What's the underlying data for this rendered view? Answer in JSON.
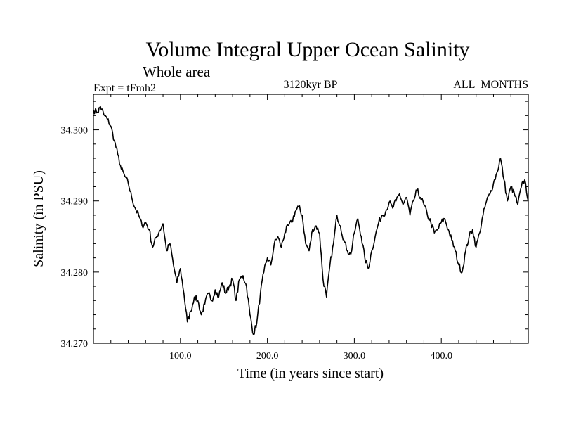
{
  "chart_data": {
    "type": "line",
    "title": "Volume Integral Upper Ocean Salinity",
    "subtitle": "Whole area",
    "left_label": "Expt = tFmh2",
    "center_label": "3120kyr BP",
    "right_label": "ALL_MONTHS",
    "xlabel": "Time (in years since start)",
    "ylabel": "Salinity (in PSU)",
    "xlim": [
      0,
      500
    ],
    "ylim": [
      34.27,
      34.305
    ],
    "xticks": [
      100,
      200,
      300,
      400
    ],
    "xtick_labels": [
      "100.0",
      "200.0",
      "300.0",
      "400.0"
    ],
    "yticks": [
      34.27,
      34.28,
      34.29,
      34.3
    ],
    "ytick_labels": [
      "34.270",
      "34.280",
      "34.290",
      "34.300"
    ],
    "series": [
      {
        "name": "Salinity",
        "x": [
          0,
          5,
          8,
          12,
          16,
          20,
          24,
          28,
          32,
          36,
          40,
          44,
          48,
          52,
          56,
          60,
          64,
          68,
          72,
          76,
          80,
          84,
          88,
          92,
          96,
          100,
          104,
          108,
          112,
          116,
          120,
          124,
          128,
          132,
          136,
          140,
          144,
          148,
          152,
          156,
          160,
          164,
          168,
          172,
          176,
          180,
          184,
          188,
          192,
          196,
          200,
          204,
          208,
          212,
          216,
          220,
          224,
          228,
          232,
          236,
          240,
          244,
          248,
          252,
          256,
          260,
          264,
          268,
          272,
          276,
          280,
          284,
          288,
          292,
          296,
          300,
          304,
          308,
          312,
          316,
          320,
          324,
          328,
          332,
          336,
          340,
          344,
          348,
          352,
          356,
          360,
          364,
          368,
          372,
          376,
          380,
          384,
          388,
          392,
          396,
          400,
          404,
          408,
          412,
          416,
          420,
          424,
          428,
          432,
          436,
          440,
          444,
          448,
          452,
          456,
          460,
          464,
          468,
          472,
          476,
          480,
          484,
          488,
          492,
          496,
          500
        ],
        "values": [
          34.3028,
          34.3025,
          34.3033,
          34.3021,
          34.3015,
          34.3005,
          34.2985,
          34.2965,
          34.2945,
          34.2935,
          34.2925,
          34.2905,
          34.289,
          34.288,
          34.2865,
          34.287,
          34.286,
          34.2835,
          34.2848,
          34.2858,
          34.2868,
          34.283,
          34.284,
          34.281,
          34.2785,
          34.2805,
          34.277,
          34.273,
          34.2745,
          34.2765,
          34.276,
          34.274,
          34.2755,
          34.277,
          34.276,
          34.2775,
          34.2765,
          34.2785,
          34.277,
          34.278,
          34.279,
          34.276,
          34.279,
          34.2795,
          34.278,
          34.274,
          34.2712,
          34.273,
          34.277,
          34.28,
          34.282,
          34.281,
          34.284,
          34.285,
          34.2835,
          34.2855,
          34.2865,
          34.287,
          34.2885,
          34.2892,
          34.288,
          34.284,
          34.283,
          34.286,
          34.2865,
          34.2855,
          34.279,
          34.2765,
          34.281,
          34.284,
          34.288,
          34.2865,
          34.2845,
          34.283,
          34.2825,
          34.2855,
          34.2875,
          34.285,
          34.282,
          34.2805,
          34.283,
          34.285,
          34.287,
          34.288,
          34.2885,
          34.2898,
          34.289,
          34.29,
          34.291,
          34.2895,
          34.2905,
          34.288,
          34.29,
          34.2915,
          34.2905,
          34.2895,
          34.288,
          34.287,
          34.2855,
          34.286,
          34.287,
          34.2875,
          34.286,
          34.2845,
          34.283,
          34.281,
          34.28,
          34.283,
          34.285,
          34.286,
          34.2835,
          34.2855,
          34.288,
          34.29,
          34.291,
          34.2925,
          34.294,
          34.296,
          34.293,
          34.29,
          34.292,
          34.291,
          34.2895,
          34.292,
          34.293,
          34.29
        ]
      }
    ]
  }
}
